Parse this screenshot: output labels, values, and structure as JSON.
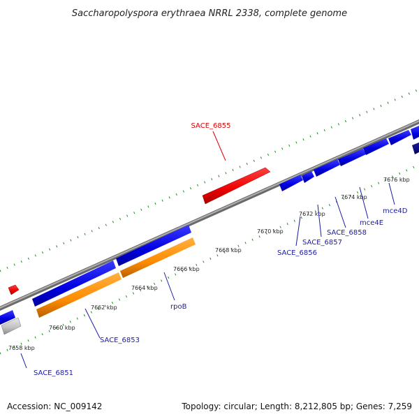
{
  "title": "Saccharopolyspora erythraea NRRL 2338, complete genome",
  "footer": {
    "accession": "Accession: NC_009142",
    "summary": "Topology: circular; Length: 8,212,805 bp; Genes: 7,259"
  },
  "ticks": [
    "7658 kbp",
    "7660 kbp",
    "7662 kbp",
    "7664 kbp",
    "7666 kbp",
    "7668 kbp",
    "7670 kbp",
    "7672 kbp",
    "7674 kbp",
    "7676 kbp"
  ],
  "gene_labels": [
    {
      "text": "SACE_6855",
      "color": "#e00000"
    },
    {
      "text": "SACE_6851",
      "color": "#1a1aa6"
    },
    {
      "text": "SACE_6853",
      "color": "#1a1aa6"
    },
    {
      "text": "rpoB",
      "color": "#1a1aa6"
    },
    {
      "text": "SACE_6856",
      "color": "#1a1aa6"
    },
    {
      "text": "SACE_6857",
      "color": "#1a1aa6"
    },
    {
      "text": "SACE_6858",
      "color": "#1a1aa6"
    },
    {
      "text": "mce4E",
      "color": "#1a1aa6"
    },
    {
      "text": "mce4D",
      "color": "#1a1aa6"
    }
  ],
  "colors": {
    "forward_cds": "#ee1111",
    "reverse_cds": "#1111dd",
    "rna": "#ff8c00",
    "other": "#c8c8c8",
    "backbone": "#909090",
    "tick_marks": "#1a8a1a"
  }
}
